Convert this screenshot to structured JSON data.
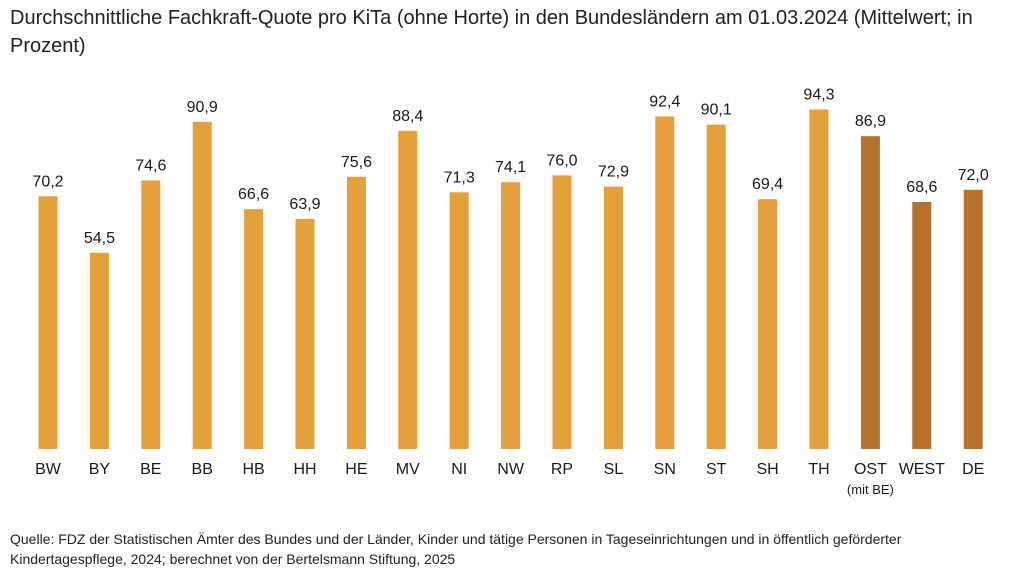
{
  "chart_data": {
    "type": "bar",
    "title": "Durchschnittliche Fachkraft-Quote pro KiTa (ohne Horte) in den Bundesländern am 01.03.2024 (Mittelwert; in Prozent)",
    "categories": [
      "BW",
      "BY",
      "BE",
      "BB",
      "HB",
      "HH",
      "HE",
      "MV",
      "NI",
      "NW",
      "RP",
      "SL",
      "SN",
      "ST",
      "SH",
      "TH",
      "OST",
      "WEST",
      "DE"
    ],
    "category_sublabels": [
      "",
      "",
      "",
      "",
      "",
      "",
      "",
      "",
      "",
      "",
      "",
      "",
      "",
      "",
      "",
      "",
      "(mit BE)",
      "",
      ""
    ],
    "values": [
      70.2,
      54.5,
      74.6,
      90.9,
      66.6,
      63.9,
      75.6,
      88.4,
      71.3,
      74.1,
      76.0,
      72.9,
      92.4,
      90.1,
      69.4,
      94.3,
      86.9,
      68.6,
      72.0
    ],
    "value_labels": [
      "70,2",
      "54,5",
      "74,6",
      "90,9",
      "66,6",
      "63,9",
      "75,6",
      "88,4",
      "71,3",
      "74,1",
      "76,0",
      "72,9",
      "92,4",
      "90,1",
      "69,4",
      "94,3",
      "86,9",
      "68,6",
      "72,0"
    ],
    "bar_colors": [
      "#E3A03B",
      "#E3A03B",
      "#E3A03B",
      "#E3A03B",
      "#E3A03B",
      "#E3A03B",
      "#E3A03B",
      "#E3A03B",
      "#E3A03B",
      "#E3A03B",
      "#E3A03B",
      "#E3A03B",
      "#E3A03B",
      "#E3A03B",
      "#E3A03B",
      "#E3A03B",
      "#B5722B",
      "#B5722B",
      "#B5722B"
    ],
    "xlabel": "",
    "ylabel": "",
    "ylim": [
      0,
      100
    ],
    "grid": false,
    "legend": "none",
    "source": "Quelle: FDZ der Statistischen Ämter des Bundes und der Länder, Kinder und tätige Personen in Tageseinrichtungen und in öffentlich geför­derter Kindertagespflege, 2024; berechnet von der Bertelsmann Stiftung, 2025"
  }
}
